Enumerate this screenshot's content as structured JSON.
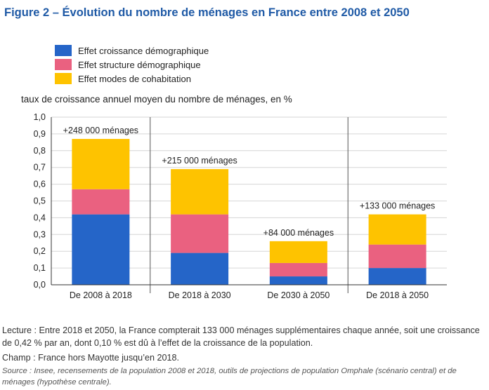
{
  "title": "Figure 2 – Évolution du nombre de ménages en France entre 2008 et 2050",
  "legend": [
    {
      "label": "Effet croissance démographique",
      "color": "#2565c8"
    },
    {
      "label": "Effet structure démographique",
      "color": "#ea6180"
    },
    {
      "label": "Effet modes de cohabitation",
      "color": "#fec300"
    }
  ],
  "notes": {
    "lecture": "Lecture : Entre 2018 et 2050, la France compterait 133 000 ménages supplémentaires chaque année, soit une croissance de 0,42 % par an, dont 0,10 % est dû à l’effet de la croissance de la population.",
    "champ": "Champ : France hors Mayotte jusqu’en 2018.",
    "source": "Source : Insee, recensements de la population 2008 et 2018, outils de projections de population Omphale (scénario central) et de ménages (hypothèse centrale)."
  },
  "chart_data": {
    "type": "bar",
    "stacked": true,
    "title": "",
    "ylabel": "taux de croissance annuel moyen du nombre de ménages, en %",
    "xlabel": "",
    "ylim": [
      0,
      1.0
    ],
    "yticks": [
      "0,0",
      "0,1",
      "0,2",
      "0,3",
      "0,4",
      "0,5",
      "0,6",
      "0,7",
      "0,8",
      "0,9",
      "1,0"
    ],
    "grid": true,
    "categories": [
      "De 2008 à 2018",
      "De 2018 à 2030",
      "De 2030 à 2050",
      "De 2018 à 2050"
    ],
    "series": [
      {
        "name": "Effet croissance démographique",
        "color": "#2565c8",
        "values": [
          0.42,
          0.19,
          0.05,
          0.1
        ]
      },
      {
        "name": "Effet structure démographique",
        "color": "#ea6180",
        "values": [
          0.15,
          0.23,
          0.08,
          0.14
        ]
      },
      {
        "name": "Effet modes de cohabitation",
        "color": "#fec300",
        "values": [
          0.3,
          0.27,
          0.13,
          0.18
        ]
      }
    ],
    "annotations": [
      "+248 000 ménages",
      "+215 000 ménages",
      "+84 000 ménages",
      "+133 000 ménages"
    ]
  }
}
